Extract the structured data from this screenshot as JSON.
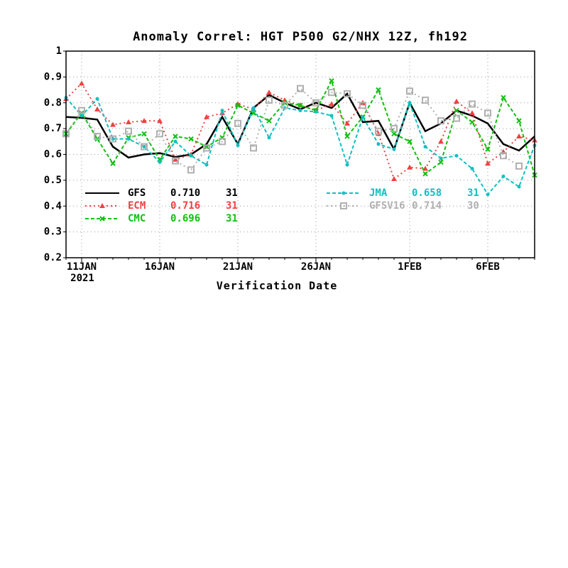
{
  "chart_data": {
    "type": "line",
    "title": "Anomaly Correl: HGT P500 G2/NHX 12Z, fh192",
    "x_label": "Verification Date",
    "year_label": "2021",
    "categories": [
      null,
      "11JAN",
      null,
      null,
      null,
      null,
      "16JAN",
      null,
      null,
      null,
      null,
      "21JAN",
      null,
      null,
      null,
      null,
      "26JAN",
      null,
      null,
      null,
      null,
      null,
      "1FEB",
      null,
      null,
      null,
      null,
      "6FEB",
      null,
      null,
      null
    ],
    "ylim": [
      0.2,
      1
    ],
    "yticks": [
      0.2,
      0.3,
      0.4,
      0.5,
      0.6,
      0.7,
      0.8,
      0.9,
      1
    ],
    "grid": true,
    "series": [
      {
        "name": "GFS",
        "score": "0.710",
        "count": 31,
        "color": "#000000",
        "dash": "solid",
        "marker": "none",
        "values": [
          0.745,
          0.742,
          0.735,
          0.63,
          0.588,
          0.6,
          0.605,
          0.59,
          0.6,
          0.64,
          0.745,
          0.64,
          0.78,
          0.83,
          0.8,
          0.775,
          0.8,
          0.78,
          0.835,
          0.725,
          0.73,
          0.62,
          0.8,
          0.69,
          0.72,
          0.77,
          0.75,
          0.72,
          0.64,
          0.615,
          0.67
        ]
      },
      {
        "name": "ECM",
        "score": "0.716",
        "count": 31,
        "color": "#f04040",
        "dash": "dotted",
        "marker": "triangle",
        "values": [
          0.815,
          0.875,
          0.775,
          0.715,
          0.725,
          0.73,
          0.73,
          0.58,
          0.6,
          0.745,
          0.76,
          0.795,
          0.775,
          0.84,
          0.81,
          0.79,
          0.77,
          0.795,
          0.72,
          0.8,
          0.68,
          0.505,
          0.55,
          0.545,
          0.65,
          0.805,
          0.76,
          0.565,
          0.61,
          0.67,
          0.655
        ]
      },
      {
        "name": "CMC",
        "score": "0.696",
        "count": 31,
        "color": "#10c010",
        "dash": "dashed",
        "marker": "x",
        "values": [
          0.68,
          0.76,
          0.66,
          0.565,
          0.665,
          0.68,
          0.58,
          0.67,
          0.66,
          0.63,
          0.665,
          0.79,
          0.76,
          0.73,
          0.8,
          0.79,
          0.77,
          0.885,
          0.67,
          0.745,
          0.85,
          0.68,
          0.65,
          0.525,
          0.57,
          0.77,
          0.725,
          0.62,
          0.82,
          0.73,
          0.52
        ]
      },
      {
        "name": "JMA",
        "score": "0.658",
        "count": 31,
        "color": "#10c0c0",
        "dash": "dashed",
        "marker": "dot",
        "values": [
          0.82,
          0.75,
          0.815,
          0.66,
          0.66,
          0.63,
          0.57,
          0.65,
          0.595,
          0.56,
          0.77,
          0.635,
          0.78,
          0.665,
          0.78,
          0.77,
          0.765,
          0.75,
          0.56,
          0.745,
          0.64,
          0.62,
          0.8,
          0.63,
          0.585,
          0.595,
          0.545,
          0.445,
          0.515,
          0.475,
          0.635
        ]
      },
      {
        "name": "GFSV16",
        "score": "0.714",
        "count": 30,
        "color": "#b0b0b0",
        "dash": "dotted",
        "marker": "square",
        "values": [
          0.68,
          0.77,
          0.67,
          0.66,
          0.69,
          0.63,
          0.68,
          0.575,
          0.54,
          0.625,
          0.65,
          0.72,
          0.625,
          0.81,
          0.79,
          0.855,
          0.8,
          0.84,
          0.835,
          0.79,
          0.69,
          0.7,
          0.845,
          0.81,
          0.73,
          0.74,
          0.795,
          0.76,
          0.595,
          0.555,
          null
        ]
      }
    ]
  }
}
